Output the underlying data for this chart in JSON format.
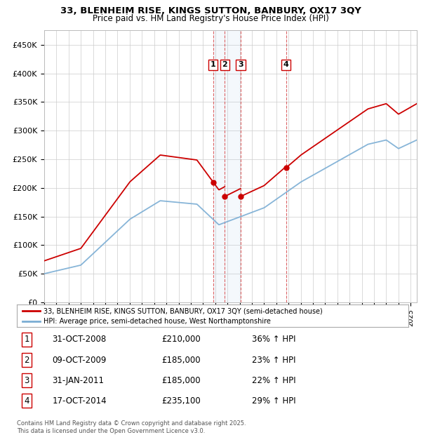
{
  "title": "33, BLENHEIM RISE, KINGS SUTTON, BANBURY, OX17 3QY",
  "subtitle": "Price paid vs. HM Land Registry's House Price Index (HPI)",
  "legend_line1": "33, BLENHEIM RISE, KINGS SUTTON, BANBURY, OX17 3QY (semi-detached house)",
  "legend_line2": "HPI: Average price, semi-detached house, West Northamptonshire",
  "red_color": "#cc0000",
  "blue_color": "#7aadd4",
  "shade_color": "#ddeeff",
  "transactions": [
    {
      "label": "1",
      "year_float": 2008.833,
      "price": 210000
    },
    {
      "label": "2",
      "year_float": 2009.783,
      "price": 185000
    },
    {
      "label": "3",
      "year_float": 2011.083,
      "price": 185000
    },
    {
      "label": "4",
      "year_float": 2014.8,
      "price": 235100
    }
  ],
  "transaction_display": [
    {
      "num": "1",
      "date_str": "31-OCT-2008",
      "price_str": "£210,000",
      "hpi_str": "36% ↑ HPI"
    },
    {
      "num": "2",
      "date_str": "09-OCT-2009",
      "price_str": "£185,000",
      "hpi_str": "23% ↑ HPI"
    },
    {
      "num": "3",
      "date_str": "31-JAN-2011",
      "price_str": "£185,000",
      "hpi_str": "22% ↑ HPI"
    },
    {
      "num": "4",
      "date_str": "17-OCT-2014",
      "price_str": "£235,100",
      "hpi_str": "29% ↑ HPI"
    }
  ],
  "footer": "Contains HM Land Registry data © Crown copyright and database right 2025.\nThis data is licensed under the Open Government Licence v3.0.",
  "ylim": [
    0,
    475000
  ],
  "yticks": [
    0,
    50000,
    100000,
    150000,
    200000,
    250000,
    300000,
    350000,
    400000,
    450000
  ],
  "ytick_labels": [
    "£0",
    "£50K",
    "£100K",
    "£150K",
    "£200K",
    "£250K",
    "£300K",
    "£350K",
    "£400K",
    "£450K"
  ],
  "xmin": 1995,
  "xmax": 2025.5
}
